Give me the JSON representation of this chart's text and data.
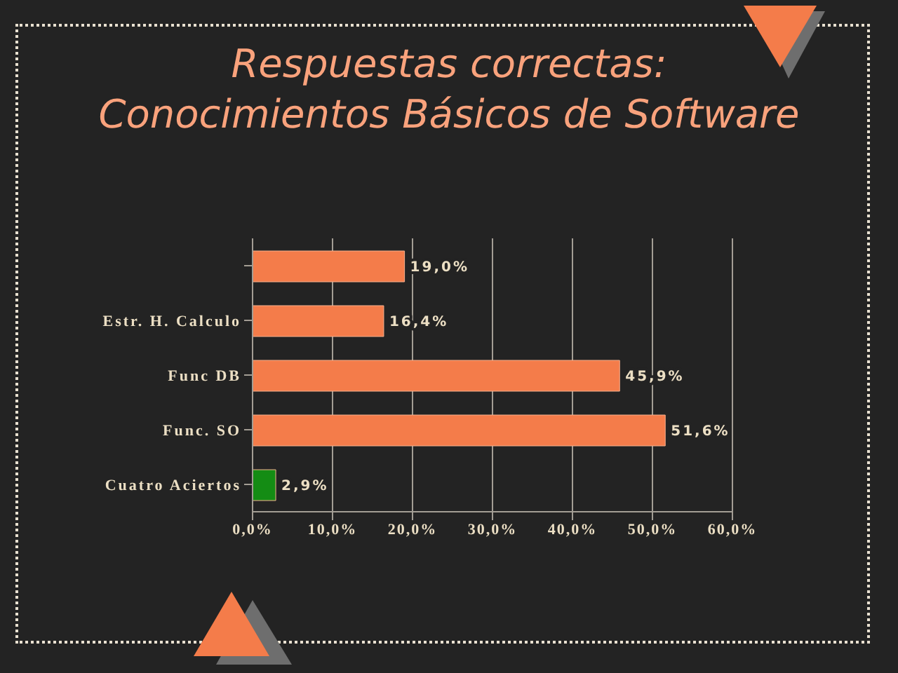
{
  "chart_data": {
    "type": "bar",
    "orientation": "horizontal",
    "title": "Respuestas correctas:",
    "subtitle": "Conocimientos Básicos de Software",
    "categories": [
      null,
      "Estr. H. Calculo",
      "Func DB",
      "Func. SO",
      "Cuatro Aciertos"
    ],
    "values": [
      19.0,
      16.4,
      45.9,
      51.6,
      2.9
    ],
    "colors": [
      "#f47c4a",
      "#f47c4a",
      "#f47c4a",
      "#f47c4a",
      "#148c14"
    ],
    "value_labels": [
      "19,0%",
      "16,4%",
      "45,9%",
      "51,6%",
      "2,9%"
    ],
    "xlim": [
      0,
      60
    ],
    "xticks": [
      {
        "value": 0,
        "label": "0,0%"
      },
      {
        "value": 10,
        "label": "10,0%"
      },
      {
        "value": 20,
        "label": "20,0%"
      },
      {
        "value": 30,
        "label": "30,0%"
      },
      {
        "value": 40,
        "label": "40,0%"
      },
      {
        "value": 50,
        "label": "50,0%"
      },
      {
        "value": 60,
        "label": "60,0%"
      }
    ],
    "grid": "x"
  }
}
